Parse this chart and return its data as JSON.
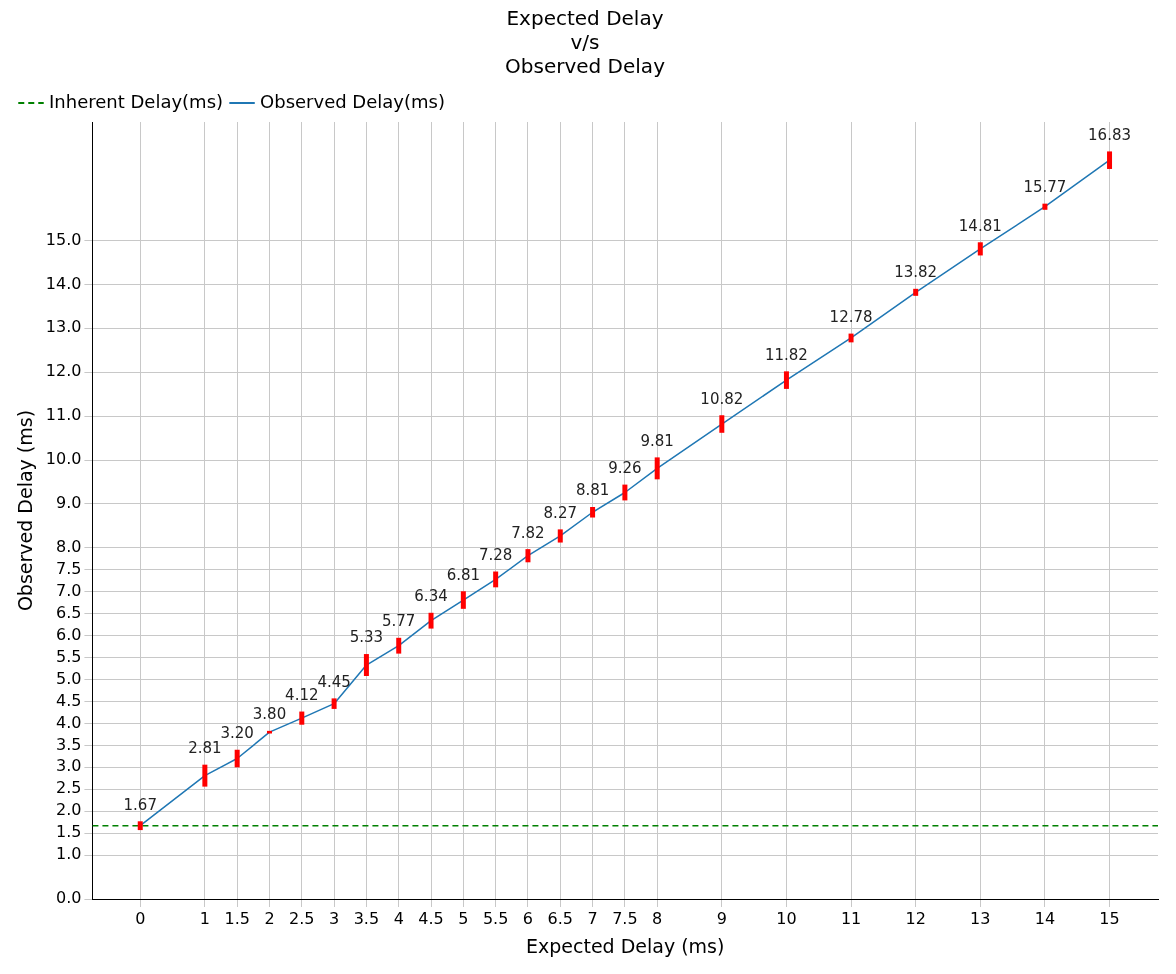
{
  "chart_data": {
    "type": "line",
    "title": "Expected Delay\nv/s\nObserved Delay",
    "xlabel": "Expected Delay (ms)",
    "ylabel": "Observed Delay (ms)",
    "x": [
      0,
      1,
      1.5,
      2,
      2.5,
      3,
      3.5,
      4,
      4.5,
      5,
      5.5,
      6,
      6.5,
      7,
      7.5,
      8,
      9,
      10,
      11,
      12,
      13,
      14,
      15
    ],
    "series": [
      {
        "name": "Observed Delay(ms)",
        "color": "#1f77b4",
        "values": [
          1.67,
          2.81,
          3.2,
          3.8,
          4.12,
          4.45,
          5.33,
          5.77,
          6.34,
          6.81,
          7.28,
          7.82,
          8.27,
          8.81,
          9.26,
          9.81,
          10.82,
          11.82,
          12.78,
          13.82,
          14.81,
          15.77,
          16.83
        ],
        "errors": [
          0.1,
          0.25,
          0.2,
          0.03,
          0.15,
          0.12,
          0.25,
          0.18,
          0.18,
          0.2,
          0.18,
          0.15,
          0.15,
          0.12,
          0.18,
          0.25,
          0.2,
          0.2,
          0.1,
          0.08,
          0.15,
          0.07,
          0.2
        ],
        "value_labels": [
          "1.67",
          "2.81",
          "3.20",
          "3.80",
          "4.12",
          "4.45",
          "5.33",
          "5.77",
          "6.34",
          "6.81",
          "7.28",
          "7.82",
          "8.27",
          "8.81",
          "9.26",
          "9.81",
          "10.82",
          "11.82",
          "12.78",
          "13.82",
          "14.81",
          "15.77",
          "16.83"
        ]
      }
    ],
    "ref_lines": [
      {
        "axis": "y",
        "value": 1.67,
        "label": "Inherent Delay(ms)",
        "color": "#008000",
        "line_style": "dashed"
      }
    ],
    "xlim": [
      -0.74,
      15.75
    ],
    "xticks": [
      0,
      1,
      1.5,
      2,
      2.5,
      3,
      3.5,
      4,
      4.5,
      5,
      5.5,
      6,
      6.5,
      7,
      7.5,
      8,
      9,
      10,
      11,
      12,
      13,
      14,
      15
    ],
    "ylim": [
      0,
      17.7
    ],
    "yticks": [
      {
        "value": 0,
        "label": "0.0"
      },
      {
        "value": 1,
        "label": "1.0"
      },
      {
        "value": 1.5,
        "label": "1.5"
      },
      {
        "value": 2,
        "label": "2.0"
      },
      {
        "value": 2.5,
        "label": "2.5"
      },
      {
        "value": 3,
        "label": "3.0"
      },
      {
        "value": 3.5,
        "label": "3.5"
      },
      {
        "value": 4,
        "label": "4.0"
      },
      {
        "value": 4.5,
        "label": "4.5"
      },
      {
        "value": 5,
        "label": "5.0"
      },
      {
        "value": 5.5,
        "label": "5.5"
      },
      {
        "value": 6,
        "label": "6.0"
      },
      {
        "value": 6.5,
        "label": "6.5"
      },
      {
        "value": 7,
        "label": "7.0"
      },
      {
        "value": 7.5,
        "label": "7.5"
      },
      {
        "value": 8,
        "label": "8.0"
      },
      {
        "value": 9,
        "label": "9.0"
      },
      {
        "value": 10,
        "label": "10.0"
      },
      {
        "value": 11,
        "label": "11.0"
      },
      {
        "value": 12,
        "label": "12.0"
      },
      {
        "value": 13,
        "label": "13.0"
      },
      {
        "value": 14,
        "label": "14.0"
      },
      {
        "value": 15,
        "label": "15.0"
      }
    ],
    "grid": true,
    "legend": "top left",
    "marker": "none",
    "line_style": "solid"
  }
}
